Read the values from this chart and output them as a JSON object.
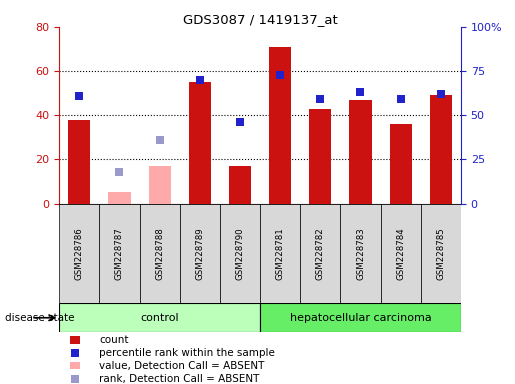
{
  "title": "GDS3087 / 1419137_at",
  "samples": [
    "GSM228786",
    "GSM228787",
    "GSM228788",
    "GSM228789",
    "GSM228790",
    "GSM228781",
    "GSM228782",
    "GSM228783",
    "GSM228784",
    "GSM228785"
  ],
  "count_present": [
    38,
    null,
    null,
    55,
    17,
    71,
    43,
    47,
    36,
    49
  ],
  "count_absent": [
    null,
    5,
    17,
    null,
    null,
    null,
    null,
    null,
    null,
    null
  ],
  "percentile_present": [
    61,
    null,
    null,
    70,
    46,
    73,
    59,
    63,
    59,
    62
  ],
  "percentile_absent": [
    null,
    18,
    36,
    null,
    null,
    null,
    null,
    null,
    null,
    null
  ],
  "groups": {
    "control": [
      0,
      1,
      2,
      3,
      4
    ],
    "hepatocellular carcinoma": [
      5,
      6,
      7,
      8,
      9
    ]
  },
  "ylim_left": [
    0,
    80
  ],
  "ylim_right": [
    0,
    100
  ],
  "yticks_left": [
    0,
    20,
    40,
    60,
    80
  ],
  "yticks_right": [
    0,
    25,
    50,
    75,
    100
  ],
  "ytick_labels_right": [
    "0",
    "25",
    "50",
    "75",
    "100%"
  ],
  "bar_color_present": "#cc1111",
  "bar_color_absent": "#ffaaaa",
  "dot_color_present": "#2222cc",
  "dot_color_absent": "#9999cc",
  "bg_color": "#ffffff",
  "bar_width": 0.55,
  "dot_size": 40,
  "control_bg": "#bbffbb",
  "carcinoma_bg": "#66ee66",
  "label_bg": "#d8d8d8",
  "disease_state_label": "disease state",
  "control_label": "control",
  "carcinoma_label": "hepatocellular carcinoma",
  "legend_items": [
    {
      "color": "#cc1111",
      "type": "bar",
      "label": "count"
    },
    {
      "color": "#2222cc",
      "type": "square",
      "label": "percentile rank within the sample"
    },
    {
      "color": "#ffaaaa",
      "type": "bar",
      "label": "value, Detection Call = ABSENT"
    },
    {
      "color": "#9999cc",
      "type": "square",
      "label": "rank, Detection Call = ABSENT"
    }
  ]
}
